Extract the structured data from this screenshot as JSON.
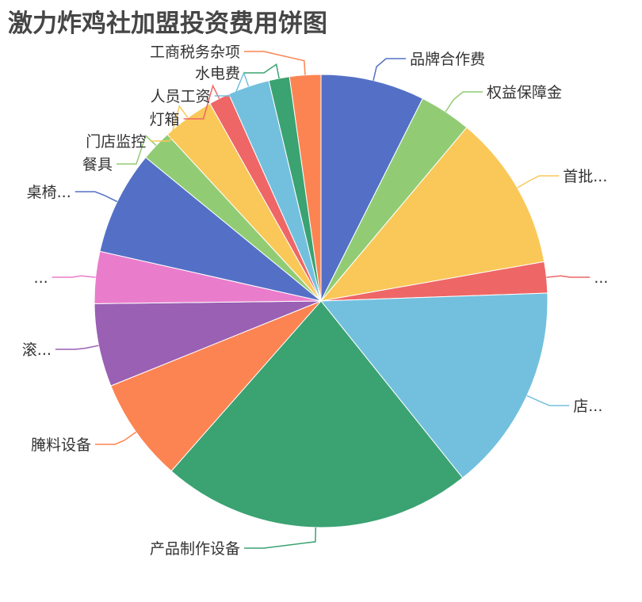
{
  "chart_data": {
    "type": "pie",
    "title": "激力炸鸡社加盟投资费用饼图",
    "slices": [
      {
        "label": "品牌合作费",
        "value": 7.5,
        "color": "#5470c6"
      },
      {
        "label": "权益保障金",
        "value": 3.75,
        "color": "#91cc75"
      },
      {
        "label": "首批...",
        "value": 11.25,
        "color": "#fac858"
      },
      {
        "label": "...",
        "value": 2.25,
        "color": "#ee6666"
      },
      {
        "label": "店...",
        "value": 15.0,
        "color": "#73c0de"
      },
      {
        "label": "产品制作设备",
        "value": 22.5,
        "color": "#3ba272"
      },
      {
        "label": "腌料设备",
        "value": 7.5,
        "color": "#fc8452"
      },
      {
        "label": "滚...",
        "value": 6.0,
        "color": "#9a60b4"
      },
      {
        "label": "...",
        "value": 3.75,
        "color": "#ea7ccc"
      },
      {
        "label": "桌椅...",
        "value": 7.5,
        "color": "#5470c6"
      },
      {
        "label": "餐具",
        "value": 2.25,
        "color": "#91cc75"
      },
      {
        "label": "门店监控",
        "value": 3.75,
        "color": "#fac858"
      },
      {
        "label": "灯箱",
        "value": 1.5,
        "color": "#ee6666"
      },
      {
        "label": "人员工资",
        "value": 3.0,
        "color": "#73c0de"
      },
      {
        "label": "水电费",
        "value": 1.5,
        "color": "#3ba272"
      },
      {
        "label": "工商税务杂项",
        "value": 2.25,
        "color": "#fc8452"
      }
    ]
  }
}
